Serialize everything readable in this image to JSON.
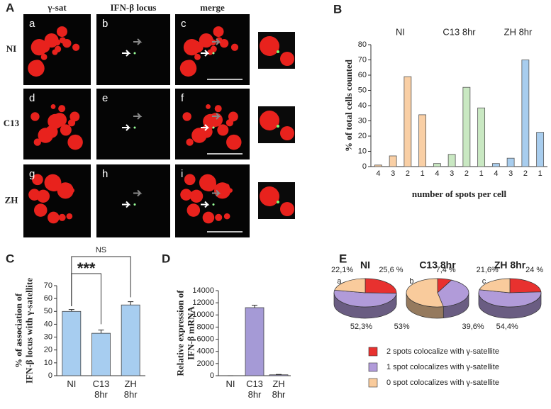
{
  "panel_labels": [
    "A",
    "B",
    "C",
    "D",
    "E"
  ],
  "microscopy": {
    "column_headers": [
      "γ-sat",
      "IFN-β locus",
      "merge"
    ],
    "row_labels": [
      "NI",
      "C13",
      "ZH"
    ],
    "panels": [
      "a",
      "b",
      "c",
      "d",
      "e",
      "f",
      "g",
      "h",
      "i"
    ]
  },
  "chart_data": [
    {
      "type": "bar",
      "ylabel": "% of total cells counted",
      "xlabel": "number of spots per cell",
      "ylim": [
        0,
        80
      ],
      "yticks": [
        0,
        10,
        20,
        30,
        40,
        50,
        60,
        70,
        80
      ],
      "groups": [
        {
          "name": "NI",
          "color": "#f9cfa5",
          "categories": [
            "4",
            "3",
            "2",
            "1"
          ],
          "values": [
            1,
            7,
            59,
            34
          ]
        },
        {
          "name": "C13 8hr",
          "color": "#c9e8c2",
          "categories": [
            "4",
            "3",
            "2",
            "1"
          ],
          "values": [
            2,
            8,
            52,
            38.5
          ]
        },
        {
          "name": "ZH 8hr",
          "color": "#a8cdee",
          "categories": [
            "4",
            "3",
            "2",
            "1"
          ],
          "values": [
            2,
            5.5,
            70,
            22.5
          ]
        }
      ]
    },
    {
      "type": "bar",
      "ylabel": [
        "% of association of",
        "IFN-β locus with γ-satellite"
      ],
      "categories": [
        "NI",
        "C13 8hr",
        "ZH 8hr"
      ],
      "values": [
        50,
        33,
        55
      ],
      "errors": [
        1.5,
        2.5,
        2.5
      ],
      "color": "#a7cdf0",
      "ylim": [
        0,
        70
      ],
      "yticks": [
        0,
        10,
        20,
        30,
        40,
        50,
        60,
        70
      ],
      "annotations": [
        "NS",
        "***"
      ]
    },
    {
      "type": "bar",
      "ylabel": [
        "Relative expression of",
        "IFN-β mRNA"
      ],
      "categories": [
        "NI",
        "C13 8hr",
        "ZH 8hr"
      ],
      "values": [
        0,
        11200,
        150
      ],
      "errors": [
        0,
        400,
        50
      ],
      "color": "#a59ad6",
      "ylim": [
        0,
        14000
      ],
      "yticks": [
        0,
        2000,
        4000,
        6000,
        8000,
        10000,
        12000,
        14000
      ]
    },
    {
      "type": "pie",
      "categories": [
        "2 spots colocalize with γ-satellite",
        "1 spot colocalizes with γ-satellite",
        "0 spot colocalizes with γ-satellite"
      ],
      "colors": [
        "#e8312f",
        "#b19bd9",
        "#f9cb9c"
      ],
      "pies": [
        {
          "title": "NI",
          "label": "a.",
          "values": [
            25.6,
            52.3,
            22.1
          ],
          "value_labels": [
            "25,6 %",
            "52,3%",
            "22,1%"
          ]
        },
        {
          "title": "C13 8hr",
          "label": "b.",
          "values": [
            7.4,
            39.6,
            53
          ],
          "value_labels": [
            "7,4 %",
            "39,6%",
            "53%"
          ]
        },
        {
          "title": "ZH 8hr",
          "label": "c.",
          "values": [
            24,
            54.4,
            21.6
          ],
          "value_labels": [
            "24 %",
            "54,4%",
            "21,6%"
          ]
        }
      ]
    }
  ]
}
